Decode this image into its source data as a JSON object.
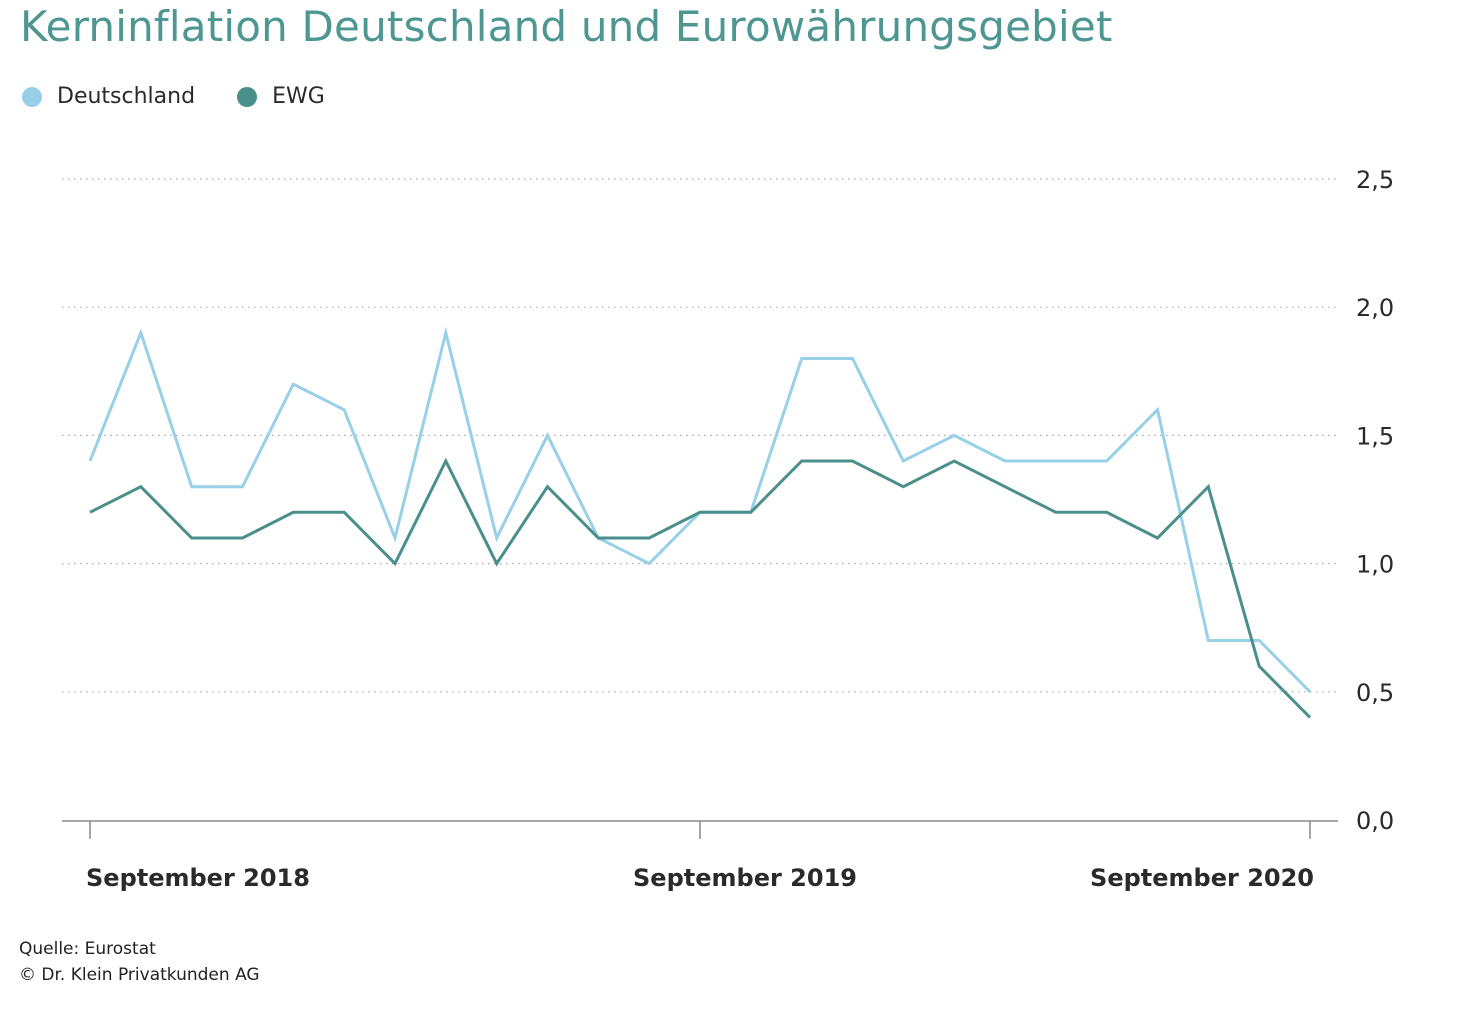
{
  "title": "Kerninflation Deutschland und Eurowährungsgebiet",
  "colors": {
    "deutschland": "#98d0e8",
    "ewg": "#4a8f8c",
    "title": "#4e9692",
    "grid": "#aaaaaa",
    "axis": "#888888",
    "text": "#2a2a2a"
  },
  "footer": {
    "source": "Quelle: Eurostat",
    "copyright": "© Dr. Klein Privatkunden AG"
  },
  "chart_data": {
    "type": "line",
    "title": "Kerninflation Deutschland und Eurowährungsgebiet",
    "xlabel": "",
    "ylabel": "",
    "ylim": [
      0,
      2.5
    ],
    "yticks": [
      0,
      0.5,
      1.0,
      1.5,
      2.0,
      2.5
    ],
    "ytick_labels": [
      "0,0",
      "0,5",
      "1,0",
      "1,5",
      "2,0",
      "2,5"
    ],
    "xtick_labels": [
      "September 2018",
      "September 2019",
      "September 2020"
    ],
    "xtick_index": [
      0,
      12,
      24
    ],
    "grid": true,
    "legend": "top-left",
    "series": [
      {
        "name": "Deutschland",
        "color": "#98d0e8",
        "values": [
          1.4,
          1.9,
          1.3,
          1.3,
          1.7,
          1.6,
          1.1,
          1.9,
          1.1,
          1.5,
          1.1,
          1.0,
          1.2,
          1.2,
          1.8,
          1.8,
          1.4,
          1.5,
          1.4,
          1.4,
          1.4,
          1.6,
          0.7,
          0.7,
          0.5
        ]
      },
      {
        "name": "EWG",
        "color": "#4a8f8c",
        "values": [
          1.2,
          1.3,
          1.1,
          1.1,
          1.2,
          1.2,
          1.0,
          1.4,
          1.0,
          1.3,
          1.1,
          1.1,
          1.2,
          1.2,
          1.4,
          1.4,
          1.3,
          1.4,
          1.3,
          1.2,
          1.2,
          1.1,
          1.3,
          0.6,
          0.4
        ]
      }
    ]
  }
}
